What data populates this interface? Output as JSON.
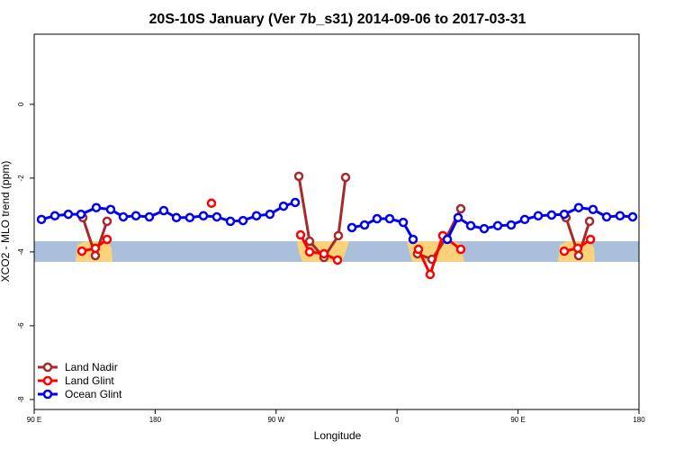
{
  "chart_data": {
    "type": "line",
    "title": "20S-10S January (Ver 7b_s31)   2014-09-06 to 2017-03-31",
    "x_label": "Longitude",
    "y_label": "XCO2 - MLO trend (ppm)",
    "xlim": [
      90,
      540
    ],
    "ylim": [
      -8.27,
      1.9
    ],
    "xticks": [
      {
        "value": 90,
        "label": "90 E"
      },
      {
        "value": 180,
        "label": "180"
      },
      {
        "value": 270,
        "label": "90 W"
      },
      {
        "value": 360,
        "label": "0"
      },
      {
        "value": 450,
        "label": "90 E"
      },
      {
        "value": 540,
        "label": "180"
      }
    ],
    "yticks": [
      0,
      -2,
      -4,
      -6,
      -8
    ],
    "legend": "bottom-left",
    "series": [
      {
        "name": "Land Nadir",
        "color": "#a52a2a",
        "x": [
          126.2,
          135.5,
          144.2,
          200,
          286.9,
          294.9,
          305.6,
          316.3,
          321.7,
          350,
          375.2,
          386,
          396.7,
          407.4,
          450,
          485.7,
          495.1,
          503.2
        ],
        "values": [
          -3.07,
          -4.1,
          -3.17,
          null,
          -1.95,
          -3.71,
          -4.15,
          -3.56,
          -1.98,
          null,
          -4.05,
          -4.2,
          -3.61,
          -2.83,
          null,
          -3.07,
          -4.1,
          -3.17
        ]
      },
      {
        "name": "Land Glint",
        "color": "#ff0000",
        "x": [
          125.5,
          135.5,
          144.2,
          180,
          221.9,
          250,
          288.2,
          294.9,
          305.6,
          315.7,
          350,
          375.9,
          384.6,
          394,
          407.4,
          450,
          484.4,
          494.4,
          503.9
        ],
        "values": [
          -3.98,
          -3.9,
          -3.66,
          null,
          -2.68,
          null,
          -3.54,
          -4.0,
          -4.05,
          -4.22,
          null,
          -3.93,
          -4.61,
          -3.56,
          -3.93,
          null,
          -3.98,
          -3.9,
          -3.66
        ]
      },
      {
        "name": "Ocean Glint",
        "color": "#0000ee",
        "x": [
          95.4,
          105.4,
          115.4,
          124.8,
          136.2,
          146.9,
          156.3,
          165.7,
          175.7,
          186.4,
          195.8,
          205.8,
          215.9,
          225.9,
          236,
          245.4,
          255.4,
          265.4,
          275.5,
          284.2,
          305,
          326.4,
          335.8,
          345.1,
          354.5,
          364.6,
          371.9,
          385,
          397.4,
          405.4,
          414.8,
          424.8,
          434.9,
          444.9,
          455,
          465,
          475,
          484.4,
          495.1,
          505.8,
          515.9,
          525.9,
          535.3
        ],
        "values": [
          -3.12,
          -3.02,
          -2.98,
          -2.98,
          -2.8,
          -2.85,
          -3.05,
          -3.02,
          -3.05,
          -2.88,
          -3.07,
          -3.07,
          -3.02,
          -3.05,
          -3.17,
          -3.15,
          -3.02,
          -2.98,
          -2.76,
          -2.66,
          null,
          -3.34,
          -3.27,
          -3.1,
          -3.1,
          -3.2,
          -3.66,
          null,
          -3.66,
          -3.07,
          -3.29,
          -3.37,
          -3.29,
          -3.27,
          -3.12,
          -3.02,
          -3.0,
          -2.98,
          -2.8,
          -2.85,
          -3.05,
          -3.02,
          -3.05
        ]
      }
    ]
  }
}
